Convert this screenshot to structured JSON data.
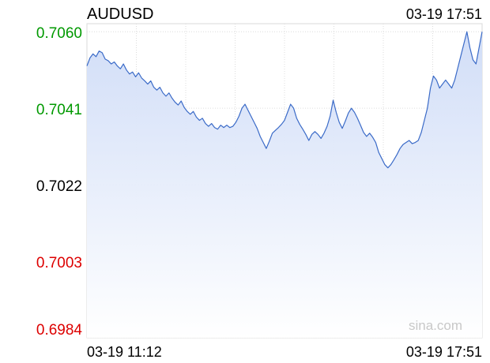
{
  "chart_data": {
    "type": "area",
    "title": "AUDUSD",
    "timestamp": "03-19 17:51",
    "x_start_label": "03-19 11:12",
    "x_end_label": "03-19 17:51",
    "watermark": "sina.com",
    "y_ticks": [
      {
        "label": "0.7060",
        "value": 0.706,
        "color": "#009900"
      },
      {
        "label": "0.7041",
        "value": 0.7041,
        "color": "#009900"
      },
      {
        "label": "0.7022",
        "value": 0.7022,
        "color": "#000000"
      },
      {
        "label": "0.7003",
        "value": 0.7003,
        "color": "#dd0000"
      },
      {
        "label": "0.6984",
        "value": 0.6984,
        "color": "#dd0000"
      }
    ],
    "ylim": [
      0.6984,
      0.7062
    ],
    "reference_value": 0.7022,
    "series": [
      {
        "values": [
          0.70515,
          0.70535,
          0.70545,
          0.70538,
          0.70552,
          0.70548,
          0.70532,
          0.70528,
          0.7052,
          0.70525,
          0.70515,
          0.70508,
          0.7052,
          0.70505,
          0.70495,
          0.705,
          0.70488,
          0.70498,
          0.70485,
          0.70478,
          0.7047,
          0.70478,
          0.70462,
          0.70455,
          0.70462,
          0.70448,
          0.7044,
          0.70448,
          0.70435,
          0.70425,
          0.70418,
          0.70428,
          0.70412,
          0.70402,
          0.70395,
          0.70402,
          0.70388,
          0.7038,
          0.70385,
          0.70372,
          0.70365,
          0.70372,
          0.70362,
          0.70358,
          0.70368,
          0.70362,
          0.70368,
          0.70362,
          0.70365,
          0.70375,
          0.7039,
          0.7041,
          0.7042,
          0.70405,
          0.7039,
          0.70375,
          0.7036,
          0.7034,
          0.70325,
          0.7031,
          0.70328,
          0.70348,
          0.70355,
          0.70362,
          0.7037,
          0.7038,
          0.704,
          0.7042,
          0.7041,
          0.70385,
          0.7037,
          0.70358,
          0.70345,
          0.7033,
          0.70345,
          0.70352,
          0.70345,
          0.70335,
          0.70348,
          0.70365,
          0.7039,
          0.7043,
          0.704,
          0.70375,
          0.7036,
          0.70378,
          0.70398,
          0.7041,
          0.704,
          0.70385,
          0.70368,
          0.7035,
          0.7034,
          0.70348,
          0.70338,
          0.70325,
          0.703,
          0.70285,
          0.7027,
          0.70262,
          0.7027,
          0.70282,
          0.70295,
          0.7031,
          0.7032,
          0.70325,
          0.7033,
          0.70322,
          0.70325,
          0.7033,
          0.7035,
          0.7038,
          0.7041,
          0.7046,
          0.7049,
          0.7048,
          0.7046,
          0.7047,
          0.7048,
          0.7047,
          0.7046,
          0.7048,
          0.7051,
          0.7054,
          0.7057,
          0.706,
          0.7056,
          0.7053,
          0.7052,
          0.7056,
          0.706
        ]
      }
    ]
  }
}
